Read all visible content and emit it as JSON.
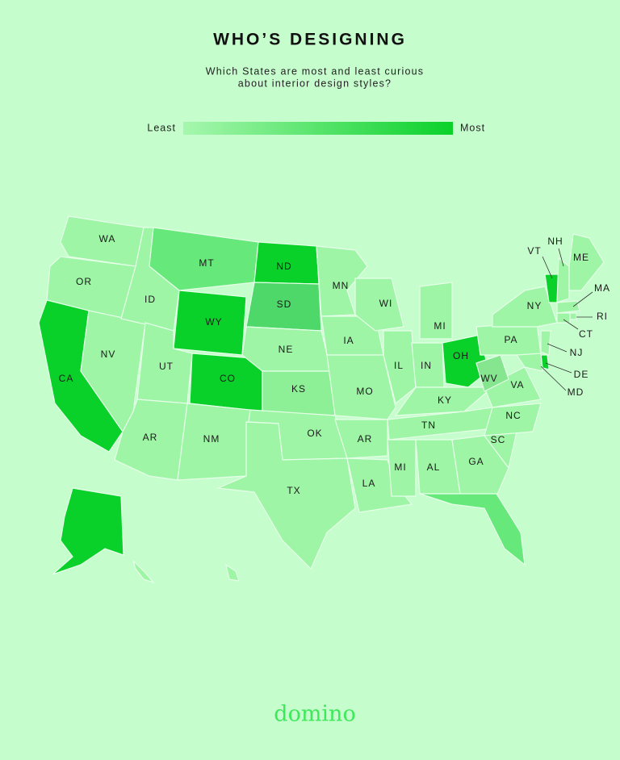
{
  "header": {
    "title": "WHO’S DESIGNING",
    "subtitle": [
      "Which States are most and least curious",
      "about interior design styles?"
    ]
  },
  "legend": {
    "low": "Least",
    "high": "Most",
    "colors": [
      "#a6f7ae",
      "#0ad12a"
    ]
  },
  "states": [
    {
      "label": "WA",
      "color": "#9ef5a6"
    },
    {
      "label": "OR",
      "color": "#9ef5a6"
    },
    {
      "label": "CA",
      "color": "#0ad12a"
    },
    {
      "label": "NV",
      "color": "#9ef5a6"
    },
    {
      "label": "ID",
      "color": "#9ef5a6"
    },
    {
      "label": "MT",
      "color": "#66e87a"
    },
    {
      "label": "WY",
      "color": "#0ad12a"
    },
    {
      "label": "UT",
      "color": "#9ef5a6"
    },
    {
      "label": "CO",
      "color": "#0ad12a"
    },
    {
      "label": "AR",
      "color": "#9ef5a6"
    },
    {
      "label": "NM",
      "color": "#9ef5a6"
    },
    {
      "label": "ND",
      "color": "#0ad12a"
    },
    {
      "label": "SD",
      "color": "#4fd86a"
    },
    {
      "label": "NE",
      "color": "#9ef5a6"
    },
    {
      "label": "KS",
      "color": "#8ef096"
    },
    {
      "label": "OK",
      "color": "#9ef5a6"
    },
    {
      "label": "TX",
      "color": "#9ef5a6"
    },
    {
      "label": "MN",
      "color": "#9ef5a6"
    },
    {
      "label": "IA",
      "color": "#9ef5a6"
    },
    {
      "label": "MO",
      "color": "#9ef5a6"
    },
    {
      "label": "AR",
      "color": "#9ef5a6"
    },
    {
      "label": "LA",
      "color": "#9ef5a6"
    },
    {
      "label": "WI",
      "color": "#9ef5a6"
    },
    {
      "label": "IL",
      "color": "#9ef5a6"
    },
    {
      "label": "MI",
      "color": "#9ef5a6"
    },
    {
      "label": "IN",
      "color": "#9ef5a6"
    },
    {
      "label": "OH",
      "color": "#0ad12a"
    },
    {
      "label": "KY",
      "color": "#9ef5a6"
    },
    {
      "label": "TN",
      "color": "#9ef5a6"
    },
    {
      "label": "MI",
      "color": "#9ef5a6"
    },
    {
      "label": "AL",
      "color": "#9ef5a6"
    },
    {
      "label": "GA",
      "color": "#9ef5a6"
    },
    {
      "color": "#66e87a"
    },
    {
      "label": "SC",
      "color": "#9ef5a6"
    },
    {
      "label": "NC",
      "color": "#9ef5a6"
    },
    {
      "label": "VA",
      "color": "#9ef5a6"
    },
    {
      "label": "WV",
      "color": "#86e58f"
    },
    {
      "label": "PA",
      "color": "#9ef5a6"
    },
    {
      "label": "NY",
      "color": "#9ef5a6"
    },
    {
      "label": "VT",
      "color": "#0ad12a"
    },
    {
      "label": "NH",
      "color": "#9ef5a6"
    },
    {
      "label": "ME",
      "color": "#9ef5a6"
    },
    {
      "label": "MA",
      "color": "#9ef5a6"
    },
    {
      "label": "RI",
      "color": "#9ef5a6"
    },
    {
      "label": "CT",
      "color": "#9ef5a6"
    },
    {
      "label": "NJ",
      "color": "#9ef5a6"
    },
    {
      "label": "DE",
      "color": "#0ad12a"
    },
    {
      "label": "MD",
      "color": "#9ef5a6"
    },
    {
      "color": "#0ad12a"
    },
    {
      "color": "#9ef5a6"
    }
  ],
  "footer": {
    "brand": "domino"
  }
}
